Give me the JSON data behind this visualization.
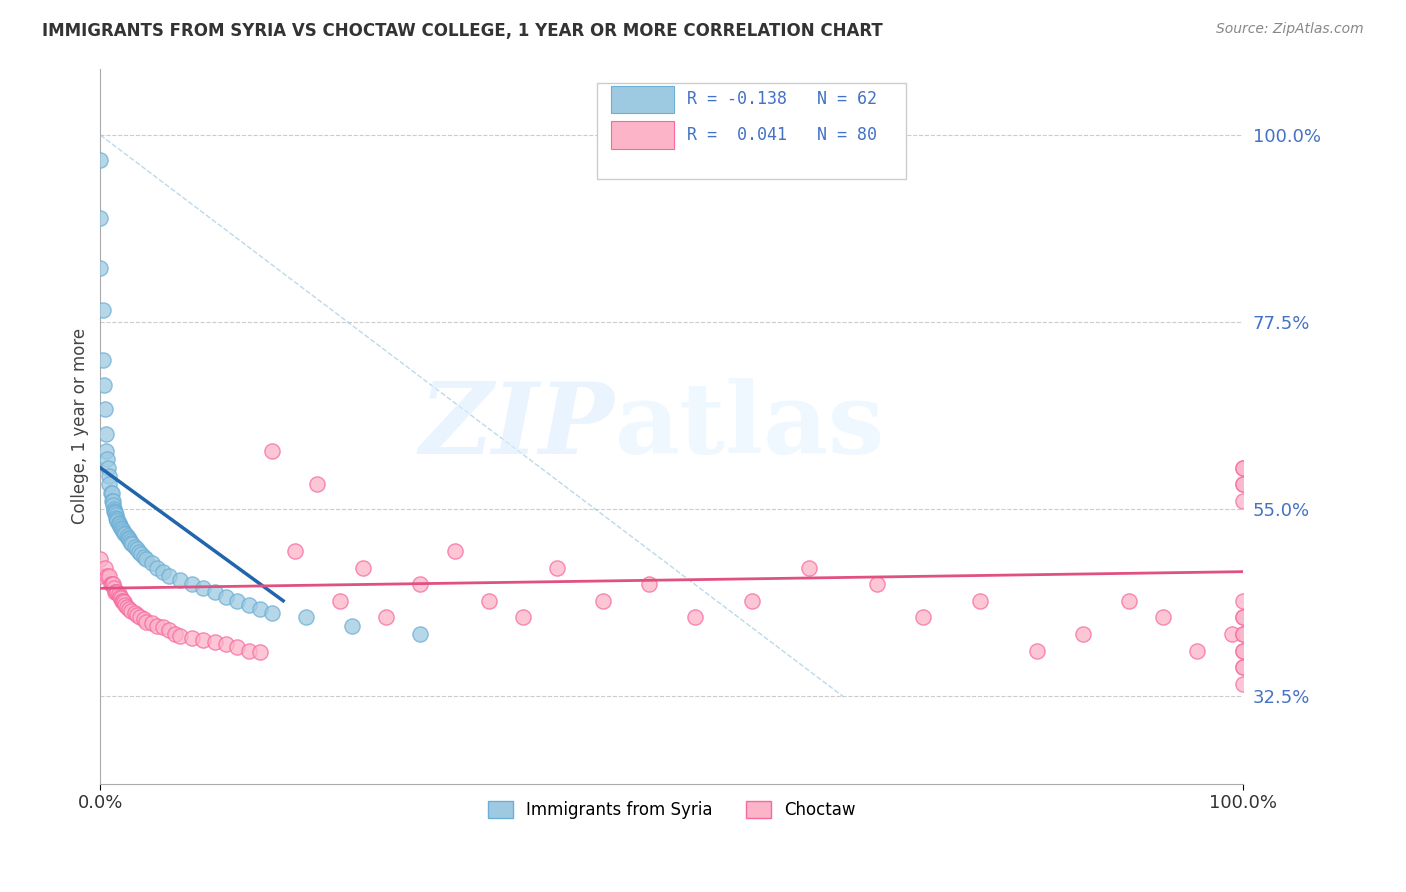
{
  "title": "IMMIGRANTS FROM SYRIA VS CHOCTAW COLLEGE, 1 YEAR OR MORE CORRELATION CHART",
  "source_text": "Source: ZipAtlas.com",
  "ylabel": "College, 1 year or more",
  "xlim": [
    0.0,
    1.0
  ],
  "ylim": [
    0.22,
    1.08
  ],
  "ytick_labels": [
    "32.5%",
    "55.0%",
    "77.5%",
    "100.0%"
  ],
  "ytick_positions": [
    0.325,
    0.55,
    0.775,
    1.0
  ],
  "color_blue": "#9ecae1",
  "color_blue_edge": "#6baed6",
  "color_pink": "#fbb4c8",
  "color_pink_edge": "#f768a1",
  "color_blue_line": "#2166ac",
  "color_pink_line": "#e05080",
  "color_diag": "#9ecae1",
  "blue_x": [
    0.0,
    0.0,
    0.0,
    0.002,
    0.002,
    0.003,
    0.004,
    0.005,
    0.005,
    0.006,
    0.007,
    0.008,
    0.008,
    0.009,
    0.01,
    0.01,
    0.011,
    0.011,
    0.012,
    0.012,
    0.013,
    0.013,
    0.014,
    0.014,
    0.015,
    0.015,
    0.016,
    0.016,
    0.017,
    0.018,
    0.019,
    0.02,
    0.021,
    0.022,
    0.023,
    0.024,
    0.025,
    0.026,
    0.027,
    0.028,
    0.03,
    0.032,
    0.034,
    0.036,
    0.038,
    0.04,
    0.045,
    0.05,
    0.055,
    0.06,
    0.07,
    0.08,
    0.09,
    0.1,
    0.11,
    0.12,
    0.13,
    0.14,
    0.15,
    0.18,
    0.22,
    0.28
  ],
  "blue_y": [
    0.97,
    0.9,
    0.84,
    0.79,
    0.73,
    0.7,
    0.67,
    0.64,
    0.62,
    0.61,
    0.6,
    0.59,
    0.58,
    0.57,
    0.57,
    0.56,
    0.56,
    0.555,
    0.55,
    0.548,
    0.547,
    0.545,
    0.543,
    0.54,
    0.538,
    0.536,
    0.534,
    0.532,
    0.53,
    0.528,
    0.526,
    0.524,
    0.522,
    0.52,
    0.518,
    0.516,
    0.514,
    0.512,
    0.51,
    0.508,
    0.505,
    0.502,
    0.499,
    0.496,
    0.493,
    0.49,
    0.485,
    0.48,
    0.475,
    0.47,
    0.465,
    0.46,
    0.455,
    0.45,
    0.445,
    0.44,
    0.435,
    0.43,
    0.425,
    0.42,
    0.41,
    0.4
  ],
  "pink_x": [
    0.0,
    0.0,
    0.004,
    0.006,
    0.008,
    0.009,
    0.01,
    0.011,
    0.012,
    0.013,
    0.014,
    0.015,
    0.016,
    0.017,
    0.018,
    0.019,
    0.02,
    0.021,
    0.022,
    0.023,
    0.025,
    0.027,
    0.03,
    0.032,
    0.035,
    0.038,
    0.04,
    0.045,
    0.05,
    0.055,
    0.06,
    0.065,
    0.07,
    0.08,
    0.09,
    0.1,
    0.11,
    0.12,
    0.13,
    0.14,
    0.15,
    0.17,
    0.19,
    0.21,
    0.23,
    0.25,
    0.28,
    0.31,
    0.34,
    0.37,
    0.4,
    0.44,
    0.48,
    0.52,
    0.57,
    0.62,
    0.68,
    0.72,
    0.77,
    0.82,
    0.86,
    0.9,
    0.93,
    0.96,
    0.99,
    1.0,
    1.0,
    1.0,
    1.0,
    1.0,
    1.0,
    1.0,
    1.0,
    1.0,
    1.0,
    1.0,
    1.0,
    1.0,
    1.0,
    1.0
  ],
  "pink_y": [
    0.49,
    0.47,
    0.48,
    0.47,
    0.47,
    0.46,
    0.46,
    0.46,
    0.455,
    0.45,
    0.45,
    0.45,
    0.448,
    0.445,
    0.443,
    0.44,
    0.44,
    0.438,
    0.435,
    0.433,
    0.43,
    0.428,
    0.425,
    0.423,
    0.42,
    0.418,
    0.415,
    0.413,
    0.41,
    0.408,
    0.405,
    0.4,
    0.398,
    0.395,
    0.393,
    0.39,
    0.388,
    0.385,
    0.38,
    0.378,
    0.62,
    0.5,
    0.58,
    0.44,
    0.48,
    0.42,
    0.46,
    0.5,
    0.44,
    0.42,
    0.48,
    0.44,
    0.46,
    0.42,
    0.44,
    0.48,
    0.46,
    0.42,
    0.44,
    0.38,
    0.4,
    0.44,
    0.42,
    0.38,
    0.4,
    0.6,
    0.58,
    0.6,
    0.58,
    0.56,
    0.42,
    0.44,
    0.4,
    0.38,
    0.42,
    0.36,
    0.38,
    0.4,
    0.36,
    0.34
  ],
  "blue_line_x": [
    0.0,
    0.16
  ],
  "blue_line_y": [
    0.6,
    0.44
  ],
  "pink_line_x": [
    0.0,
    1.0
  ],
  "pink_line_y": [
    0.455,
    0.475
  ],
  "diag_line_x": [
    0.0,
    0.65
  ],
  "diag_line_y": [
    1.0,
    0.325
  ]
}
